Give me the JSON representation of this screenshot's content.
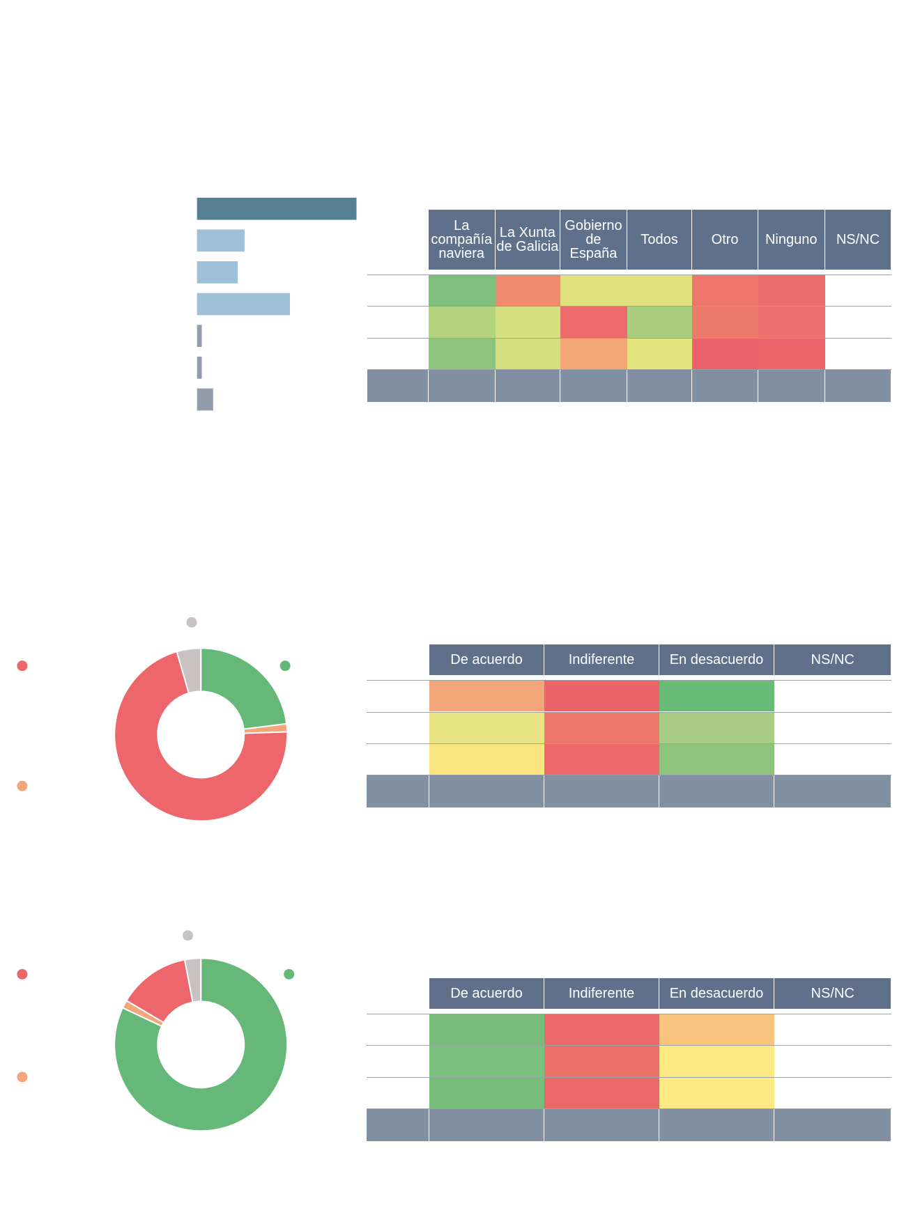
{
  "chart_data": [
    {
      "type": "bar",
      "orientation": "horizontal",
      "values": [
        43.6,
        13,
        11.1,
        25.4,
        1.3,
        1.3,
        4.4
      ],
      "colors": [
        "#557f93",
        "#9dc0d8",
        "#9dc0d8",
        "#9dc0d8",
        "#939daa",
        "#939daa",
        "#939daa"
      ]
    },
    {
      "type": "donut",
      "values": [
        23,
        1.5,
        71,
        4.5
      ],
      "colors": [
        "#66b878",
        "#f2a679",
        "#ec666b",
        "#c8c2c2"
      ]
    },
    {
      "type": "donut",
      "values": [
        82,
        1.5,
        13.5,
        3
      ],
      "colors": [
        "#66b878",
        "#f2a679",
        "#ec666b",
        "#c8c2c2"
      ]
    }
  ],
  "tables": [
    {
      "columns": [
        "La compañía naviera",
        "La Xunta de Galicia",
        "Gobierno de España",
        "Todos",
        "Otro",
        "Ninguno",
        "NS/NC"
      ],
      "header_color": "#5f708a",
      "total_color": "#828fa2",
      "cell_colors": [
        [
          "#7fbf7b",
          "#ef8a6c",
          "#e0e07f",
          "#e0e07f",
          "#ee766b",
          "#ec6d6b",
          "#ffffff"
        ],
        [
          "#b3d47f",
          "#d4df7f",
          "#ec6a6a",
          "#a9cd7f",
          "#ee7a6b",
          "#ec706b",
          "#ffffff"
        ],
        [
          "#8cc47c",
          "#d4df7f",
          "#f4a677",
          "#e4e47f",
          "#ec6169",
          "#ec656b",
          "#ffffff"
        ]
      ]
    },
    {
      "columns": [
        "De acuerdo",
        "Indiferente",
        "En desacuerdo",
        "NS/NC"
      ],
      "header_color": "#5f708a",
      "total_color": "#828fa2",
      "cell_colors": [
        [
          "#f2a679",
          "#eb6468",
          "#6aba78",
          "#ffffff"
        ],
        [
          "#e8e384",
          "#ee776b",
          "#a8cc84",
          "#ffffff"
        ],
        [
          "#f9e680",
          "#ec676a",
          "#8ec47c",
          "#ffffff"
        ]
      ]
    },
    {
      "columns": [
        "De acuerdo",
        "Indiferente",
        "En desacuerdo",
        "NS/NC"
      ],
      "header_color": "#5f708a",
      "total_color": "#828fa2",
      "cell_colors": [
        [
          "#77bc7a",
          "#eb6a69",
          "#f8c47e",
          "#ffffff"
        ],
        [
          "#7bbf7c",
          "#ec716a",
          "#fde982",
          "#ffffff"
        ],
        [
          "#77bd7a",
          "#ec6868",
          "#fde982",
          "#ffffff"
        ]
      ]
    }
  ]
}
